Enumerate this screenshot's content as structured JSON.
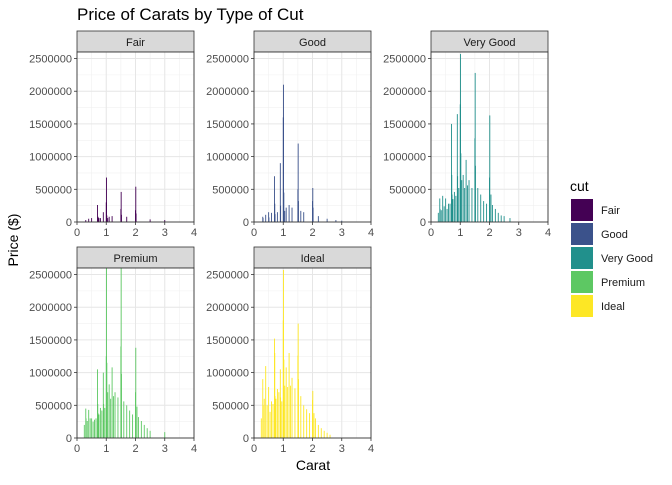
{
  "chart_data": {
    "type": "bar",
    "title": "Price of Carats by Type of Cut",
    "xlabel": "Carat",
    "ylabel": "Price ($)",
    "xlim": [
      0,
      4
    ],
    "ylim": [
      0,
      2600000
    ],
    "x_ticks": [
      "0",
      "1",
      "2",
      "3",
      "4"
    ],
    "y_ticks": [
      "0",
      "500000",
      "1000000",
      "1500000",
      "2000000",
      "2500000"
    ],
    "x_tick_values": [
      0,
      1,
      2,
      3,
      4
    ],
    "y_tick_values": [
      0,
      500000,
      1000000,
      1500000,
      2000000,
      2500000
    ],
    "grid": true,
    "legend": {
      "title": "cut",
      "position": "right",
      "items": [
        {
          "label": "Fair",
          "color": "#440154"
        },
        {
          "label": "Good",
          "color": "#3B528B"
        },
        {
          "label": "Very Good",
          "color": "#21908C"
        },
        {
          "label": "Premium",
          "color": "#5DC863"
        },
        {
          "label": "Ideal",
          "color": "#FDE725"
        }
      ]
    },
    "panels": [
      {
        "name": "Fair",
        "color": "#440154",
        "x": [
          0.3,
          0.4,
          0.5,
          0.7,
          0.72,
          0.75,
          0.8,
          0.9,
          1.0,
          1.01,
          1.02,
          1.05,
          1.1,
          1.2,
          1.5,
          1.51,
          1.52,
          1.7,
          2.0,
          2.01,
          2.02,
          2.5,
          3.0
        ],
        "values": [
          30000,
          50000,
          60000,
          260000,
          80000,
          60000,
          60000,
          150000,
          300000,
          680000,
          100000,
          60000,
          80000,
          90000,
          200000,
          460000,
          110000,
          80000,
          180000,
          540000,
          130000,
          40000,
          30000
        ]
      },
      {
        "name": "Good",
        "color": "#3B528B",
        "x": [
          0.3,
          0.31,
          0.4,
          0.5,
          0.51,
          0.6,
          0.7,
          0.71,
          0.72,
          0.8,
          0.9,
          0.91,
          1.0,
          1.01,
          1.02,
          1.05,
          1.1,
          1.2,
          1.3,
          1.5,
          1.51,
          1.52,
          1.6,
          1.7,
          2.0,
          2.01,
          2.02,
          2.2,
          2.5,
          2.8,
          3.0
        ],
        "values": [
          80000,
          60000,
          110000,
          150000,
          70000,
          140000,
          700000,
          280000,
          120000,
          150000,
          900000,
          250000,
          1600000,
          2100000,
          450000,
          170000,
          220000,
          260000,
          220000,
          500000,
          1200000,
          320000,
          170000,
          150000,
          320000,
          520000,
          220000,
          90000,
          50000,
          30000,
          20000
        ]
      },
      {
        "name": "Very Good",
        "color": "#21908C",
        "x": [
          0.25,
          0.3,
          0.31,
          0.35,
          0.4,
          0.45,
          0.5,
          0.55,
          0.6,
          0.65,
          0.7,
          0.71,
          0.72,
          0.75,
          0.8,
          0.85,
          0.9,
          0.91,
          0.95,
          1.0,
          1.01,
          1.02,
          1.05,
          1.1,
          1.15,
          1.2,
          1.25,
          1.3,
          1.4,
          1.5,
          1.51,
          1.52,
          1.6,
          1.7,
          1.8,
          1.9,
          2.0,
          2.01,
          2.05,
          2.1,
          2.2,
          2.3,
          2.4,
          2.5,
          2.7
        ],
        "values": [
          140000,
          360000,
          200000,
          180000,
          400000,
          240000,
          360000,
          200000,
          280000,
          280000,
          1500000,
          720000,
          420000,
          350000,
          460000,
          400000,
          1650000,
          700000,
          520000,
          1800000,
          2570000,
          1050000,
          640000,
          720000,
          520000,
          950000,
          560000,
          640000,
          520000,
          1280000,
          2280000,
          860000,
          520000,
          420000,
          320000,
          280000,
          680000,
          1630000,
          420000,
          260000,
          200000,
          140000,
          100000,
          90000,
          60000
        ]
      },
      {
        "name": "Premium",
        "color": "#5DC863",
        "x": [
          0.25,
          0.3,
          0.31,
          0.35,
          0.4,
          0.45,
          0.5,
          0.55,
          0.6,
          0.65,
          0.7,
          0.71,
          0.72,
          0.75,
          0.8,
          0.85,
          0.9,
          0.91,
          0.95,
          1.0,
          1.01,
          1.02,
          1.05,
          1.1,
          1.15,
          1.2,
          1.25,
          1.3,
          1.4,
          1.5,
          1.51,
          1.52,
          1.6,
          1.7,
          1.8,
          1.9,
          2.0,
          2.01,
          2.05,
          2.1,
          2.2,
          2.3,
          2.4,
          2.5,
          3.0
        ],
        "values": [
          200000,
          450000,
          300000,
          260000,
          430000,
          300000,
          300000,
          250000,
          280000,
          300000,
          1050000,
          520000,
          380000,
          360000,
          460000,
          420000,
          1000000,
          520000,
          460000,
          1250000,
          2630000,
          1150000,
          700000,
          820000,
          600000,
          1080000,
          640000,
          700000,
          620000,
          1400000,
          2600000,
          980000,
          560000,
          500000,
          420000,
          360000,
          700000,
          1380000,
          480000,
          320000,
          260000,
          200000,
          150000,
          110000,
          90000
        ]
      },
      {
        "name": "Ideal",
        "color": "#FDE725",
        "x": [
          0.25,
          0.3,
          0.31,
          0.35,
          0.4,
          0.45,
          0.5,
          0.55,
          0.6,
          0.65,
          0.7,
          0.71,
          0.72,
          0.75,
          0.8,
          0.85,
          0.9,
          0.91,
          0.95,
          1.0,
          1.01,
          1.02,
          1.05,
          1.1,
          1.15,
          1.2,
          1.25,
          1.3,
          1.4,
          1.5,
          1.51,
          1.52,
          1.6,
          1.7,
          1.8,
          1.9,
          2.0,
          2.01,
          2.05,
          2.1,
          2.2,
          2.3,
          2.4,
          2.5,
          2.6
        ],
        "values": [
          300000,
          900000,
          500000,
          600000,
          1100000,
          500000,
          780000,
          400000,
          560000,
          520000,
          1520000,
          1300000,
          640000,
          600000,
          750000,
          700000,
          1050000,
          620000,
          560000,
          1800000,
          2570000,
          1200000,
          800000,
          1080000,
          780000,
          1300000,
          800000,
          920000,
          760000,
          1260000,
          1750000,
          900000,
          640000,
          500000,
          440000,
          380000,
          580000,
          720000,
          380000,
          300000,
          200000,
          150000,
          110000,
          80000,
          50000
        ]
      }
    ]
  }
}
